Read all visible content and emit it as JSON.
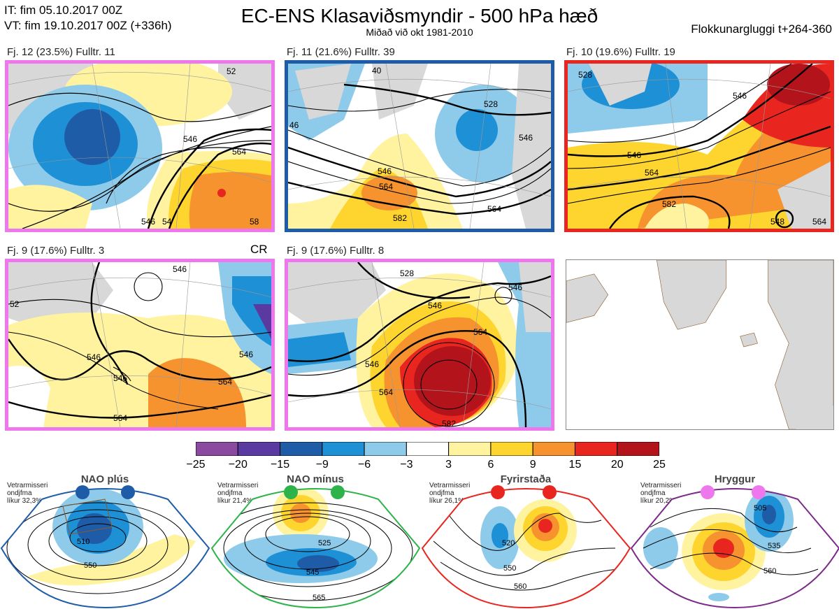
{
  "header": {
    "it_line": "IT: fim 05.10.2017 00Z",
    "vt_line": "VT: fim 19.10.2017 00Z  (+336h)",
    "title": "EC-ENS Klasaviðsmyndir - 500 hPa hæð",
    "subtitle": "Miðað við okt 1981-2010",
    "window": "Flokkunargluggi t+264-360"
  },
  "panels": [
    {
      "label": "Fj. 12 (23.5%)   Fulltr. 11",
      "border": "#ee77ee",
      "contours": [
        "546",
        "564",
        "546",
        "54",
        "58",
        "52"
      ]
    },
    {
      "label": "Fj. 11 (21.6%)   Fulltr. 39",
      "border": "#1f5ca8",
      "contours": [
        "528",
        "546",
        "564",
        "582",
        "564",
        "546",
        "46",
        "40"
      ]
    },
    {
      "label": "Fj. 10 (19.6%)   Fulltr. 19",
      "border": "#e8261f",
      "contours": [
        "546",
        "564",
        "582",
        "528",
        "546",
        "548",
        "564"
      ]
    },
    {
      "label": "Fj. 9 (17.6%)   Fulltr. 3",
      "border": "#ee77ee",
      "contours": [
        "546",
        "564",
        "546",
        "546",
        "564",
        "546",
        "52"
      ]
    },
    {
      "label": "Fj. 9 (17.6%)   Fulltr. 8",
      "border": "#ee77ee",
      "contours": [
        "546",
        "564",
        "582",
        "546",
        "528",
        "546",
        "564"
      ]
    }
  ],
  "cr_label": "CR",
  "colorbar": {
    "colors": [
      "#8a4aa0",
      "#5a3aa0",
      "#1f5ca8",
      "#1e90d6",
      "#8ecbea",
      "#ffffff",
      "#fff3a0",
      "#fdd52e",
      "#f6932e",
      "#e8261f",
      "#b3141c"
    ],
    "ticks": [
      "−25",
      "−20",
      "−15",
      "−9",
      "−6",
      "−3",
      "3",
      "6",
      "9",
      "15",
      "20",
      "25"
    ]
  },
  "regimes": [
    {
      "title": "NAO plús",
      "note": "Vetrarmisseri\nondjfma\nlíkur 32,3%",
      "dot_color": "#1f5ca8",
      "frame": "#1f5ca8",
      "contours": [
        "510",
        "550"
      ]
    },
    {
      "title": "NAO mínus",
      "note": "Vetrarmisseri\nondjfma\nlíkur 21,4%",
      "dot_color": "#2db34a",
      "frame": "#2db34a",
      "contours": [
        "525",
        "545",
        "565"
      ]
    },
    {
      "title": "Fyrirstaða",
      "note": "Vetrarmisseri\nondjfma\nlíkur 26,1%",
      "dot_color": "#e8261f",
      "frame": "#e8261f",
      "contours": [
        "520",
        "550",
        "560"
      ]
    },
    {
      "title": "Hryggur",
      "note": "Vetrarmisseri\nondjfma\nlíkur 20,2%",
      "dot_color": "#ee77ee",
      "frame": "#7b2a8a",
      "contours": [
        "505",
        "535",
        "560"
      ]
    }
  ]
}
